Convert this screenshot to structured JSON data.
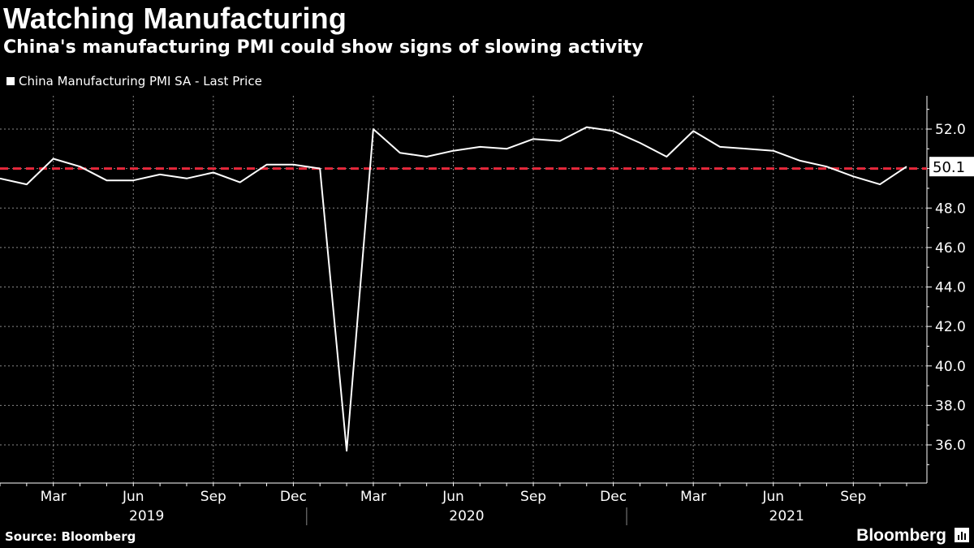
{
  "title": "Watching Manufacturing",
  "subtitle": "China's manufacturing PMI could show signs of slowing activity",
  "source": "Source: Bloomberg",
  "brand": "Bloomberg",
  "colors": {
    "background": "#000000",
    "line": "#ffffff",
    "reference": "#e8283b",
    "grid": "#888888"
  },
  "chart_data": {
    "type": "line",
    "title": "Watching Manufacturing",
    "subtitle": "China's manufacturing PMI could show signs of slowing activity",
    "legend": "China Manufacturing PMI SA - Last Price",
    "legend_position": "top-left",
    "ylim": [
      34.0,
      53.5
    ],
    "y_ticks": [
      36.0,
      38.0,
      40.0,
      42.0,
      44.0,
      46.0,
      48.0,
      50.0,
      52.0
    ],
    "y_tick_labels": [
      "36.0",
      "38.0",
      "40.0",
      "42.0",
      "44.0",
      "46.0",
      "48.0",
      "",
      "52.0"
    ],
    "grid": true,
    "x_tick_labels": [
      "Mar",
      "Jun",
      "Sep",
      "Dec",
      "Mar",
      "Jun",
      "Sep",
      "Dec",
      "Mar",
      "Jun",
      "Sep"
    ],
    "year_labels": [
      "2019",
      "2020",
      "2021"
    ],
    "reference_line": {
      "value": 50.0,
      "style": "dashed"
    },
    "last_value_label": "50.1",
    "x": [
      "2019-01",
      "2019-02",
      "2019-03",
      "2019-04",
      "2019-05",
      "2019-06",
      "2019-07",
      "2019-08",
      "2019-09",
      "2019-10",
      "2019-11",
      "2019-12",
      "2020-01",
      "2020-02",
      "2020-03",
      "2020-04",
      "2020-05",
      "2020-06",
      "2020-07",
      "2020-08",
      "2020-09",
      "2020-10",
      "2020-11",
      "2020-12",
      "2021-01",
      "2021-02",
      "2021-03",
      "2021-04",
      "2021-05",
      "2021-06",
      "2021-07",
      "2021-08",
      "2021-09",
      "2021-10",
      "2021-11"
    ],
    "values": [
      49.5,
      49.2,
      50.5,
      50.1,
      49.4,
      49.4,
      49.7,
      49.5,
      49.8,
      49.3,
      50.2,
      50.2,
      50.0,
      35.7,
      52.0,
      50.8,
      50.6,
      50.9,
      51.1,
      51.0,
      51.5,
      51.4,
      52.1,
      51.9,
      51.3,
      50.6,
      51.9,
      51.1,
      51.0,
      50.9,
      50.4,
      50.1,
      49.6,
      49.2,
      50.1
    ]
  }
}
